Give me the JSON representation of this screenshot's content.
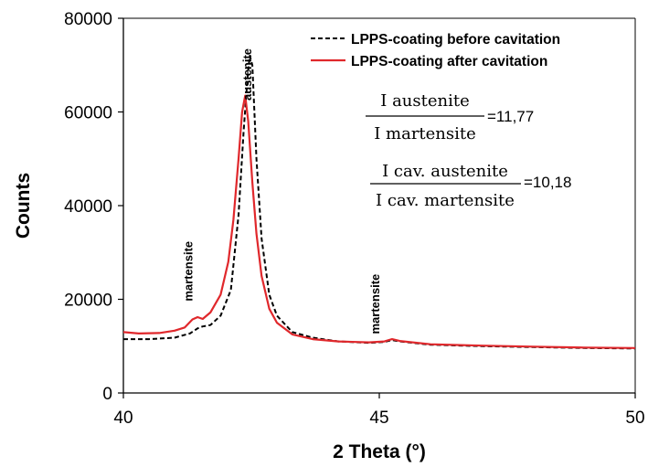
{
  "chart_data": {
    "type": "line",
    "xlabel": "2 Theta (°)",
    "ylabel": "Counts",
    "xlim": [
      40,
      50
    ],
    "ylim": [
      0,
      80000
    ],
    "xticks": [
      40,
      45,
      50
    ],
    "yticks": [
      0,
      20000,
      40000,
      60000,
      80000
    ],
    "x_tick_labels": [
      "40",
      "45",
      "50"
    ],
    "y_tick_labels": [
      "0",
      "20000",
      "40000",
      "60000",
      "80000"
    ],
    "grid": false,
    "legend_position": "top-right",
    "series": [
      {
        "name": "LPPS-coating before cavitation",
        "color": "#000000",
        "style": "dashed",
        "points": [
          [
            40.0,
            11500
          ],
          [
            40.5,
            11500
          ],
          [
            41.0,
            11800
          ],
          [
            41.3,
            12700
          ],
          [
            41.45,
            13800
          ],
          [
            41.55,
            14200
          ],
          [
            41.7,
            14500
          ],
          [
            41.9,
            16500
          ],
          [
            42.1,
            22000
          ],
          [
            42.25,
            38000
          ],
          [
            42.35,
            56000
          ],
          [
            42.43,
            68000
          ],
          [
            42.47,
            72000
          ],
          [
            42.52,
            70000
          ],
          [
            42.6,
            50000
          ],
          [
            42.7,
            33000
          ],
          [
            42.85,
            21000
          ],
          [
            43.0,
            16500
          ],
          [
            43.3,
            13000
          ],
          [
            43.7,
            11800
          ],
          [
            44.2,
            11000
          ],
          [
            44.8,
            10700
          ],
          [
            45.1,
            10900
          ],
          [
            45.25,
            11300
          ],
          [
            45.4,
            11000
          ],
          [
            46.0,
            10300
          ],
          [
            47.0,
            10000
          ],
          [
            48.0,
            9800
          ],
          [
            49.0,
            9600
          ],
          [
            50.0,
            9500
          ]
        ]
      },
      {
        "name": "LPPS-coating after cavitation",
        "color": "#e0282c",
        "style": "solid",
        "points": [
          [
            40.0,
            13000
          ],
          [
            40.3,
            12700
          ],
          [
            40.7,
            12800
          ],
          [
            41.0,
            13300
          ],
          [
            41.2,
            14000
          ],
          [
            41.35,
            15700
          ],
          [
            41.45,
            16200
          ],
          [
            41.55,
            15800
          ],
          [
            41.7,
            17200
          ],
          [
            41.9,
            21000
          ],
          [
            42.05,
            28000
          ],
          [
            42.15,
            37000
          ],
          [
            42.25,
            50000
          ],
          [
            42.32,
            60000
          ],
          [
            42.38,
            63500
          ],
          [
            42.44,
            58000
          ],
          [
            42.52,
            45000
          ],
          [
            42.6,
            34000
          ],
          [
            42.7,
            25000
          ],
          [
            42.85,
            18000
          ],
          [
            43.0,
            15000
          ],
          [
            43.3,
            12500
          ],
          [
            43.7,
            11500
          ],
          [
            44.2,
            11000
          ],
          [
            44.8,
            10800
          ],
          [
            45.1,
            11000
          ],
          [
            45.25,
            11500
          ],
          [
            45.4,
            11100
          ],
          [
            46.0,
            10400
          ],
          [
            47.0,
            10100
          ],
          [
            48.0,
            9900
          ],
          [
            49.0,
            9700
          ],
          [
            50.0,
            9600
          ]
        ]
      }
    ],
    "annotations": [
      {
        "text": "martensite",
        "x": 41.35,
        "y": 26000,
        "rotation": -90
      },
      {
        "text": "austenite",
        "x": 42.5,
        "y": 68000,
        "rotation": -90
      },
      {
        "text": "martensite",
        "x": 45.0,
        "y": 19000,
        "rotation": -90
      }
    ],
    "ratios": [
      {
        "numerator": "I austenite",
        "denominator": "I martensite",
        "value": "=11,77"
      },
      {
        "numerator": "I cav. austenite",
        "denominator": "I cav. martensite",
        "value": "=10,18"
      }
    ]
  }
}
